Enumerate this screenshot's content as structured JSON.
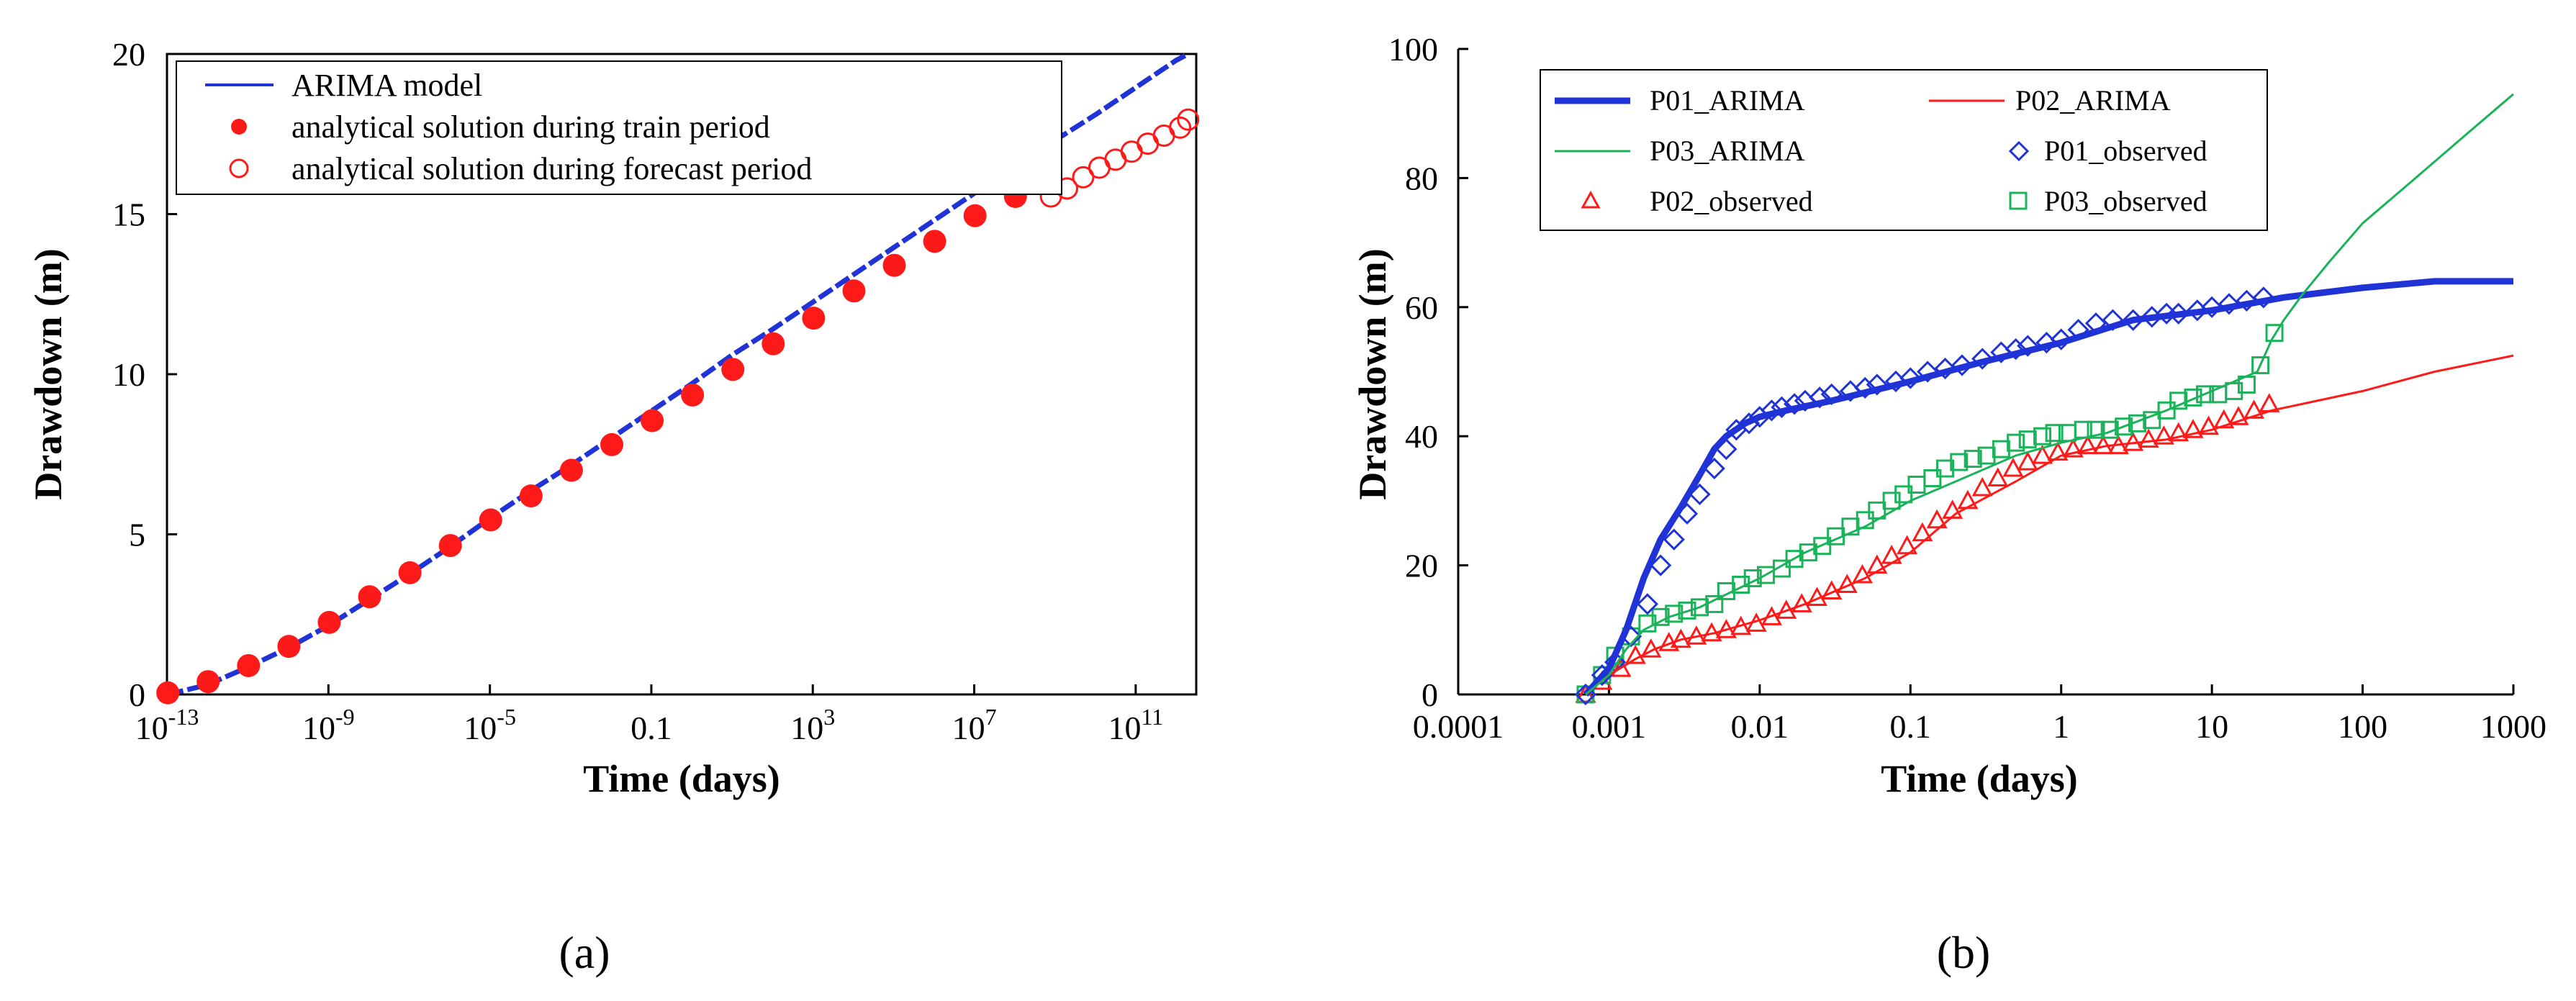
{
  "chart_data": [
    {
      "type": "line",
      "panel_label": "(a)",
      "title": "",
      "xlabel": "Time (days)",
      "ylabel": "Drawdown  (m)",
      "x_scale": "log",
      "xlim_exponent": [
        -13,
        12.5
      ],
      "ylim": [
        0,
        20
      ],
      "y_ticks": [
        "0",
        "5",
        "10",
        "15",
        "20"
      ],
      "x_ticks": [
        {
          "base": "10",
          "exp": "-13",
          "e": -13
        },
        {
          "base": "10",
          "exp": "-9",
          "e": -9
        },
        {
          "base": "10",
          "exp": "-5",
          "e": -5
        },
        {
          "base": "0.1",
          "exp": "",
          "e": -1
        },
        {
          "base": "10",
          "exp": "3",
          "e": 3
        },
        {
          "base": "10",
          "exp": "7",
          "e": 7
        },
        {
          "base": "10",
          "exp": "11",
          "e": 11
        }
      ],
      "legend_position": "top-left",
      "legend": [
        "ARIMA model",
        "analytical solution during train period",
        "analytical solution during forecast period"
      ],
      "colors": {
        "model": "#1f33d6",
        "train": "#ff1a1a",
        "forecast": "#ff1a1a"
      },
      "series": [
        {
          "name": "ARIMA model",
          "style": "line",
          "x_log10": [
            -12.98,
            -12,
            -11,
            -10,
            -9,
            -8,
            -7,
            -6,
            -5,
            -4,
            -3,
            -2,
            -1,
            0,
            1,
            2,
            3,
            4,
            5,
            6,
            7,
            8,
            9,
            10,
            11,
            12,
            12.3
          ],
          "y": [
            0,
            0.3,
            0.85,
            1.45,
            2.15,
            2.95,
            3.75,
            4.6,
            5.5,
            6.35,
            7.15,
            8.0,
            8.85,
            9.7,
            10.6,
            11.4,
            12.25,
            13.1,
            13.95,
            14.8,
            15.65,
            16.45,
            17.3,
            18.1,
            18.95,
            19.8,
            20.0
          ]
        },
        {
          "name": "analytical solution during train period",
          "style": "filled-circle",
          "x_log10": [
            -12.98,
            -11.98,
            -10.98,
            -9.98,
            -8.98,
            -7.98,
            -6.98,
            -5.98,
            -4.98,
            -3.98,
            -2.98,
            -1.98,
            -0.98,
            0.02,
            1.02,
            2.02,
            3.02,
            4.02,
            5.02,
            6.02,
            7.02,
            8.02,
            8.9
          ],
          "y": [
            0.05,
            0.4,
            0.9,
            1.5,
            2.25,
            3.05,
            3.8,
            4.65,
            5.45,
            6.2,
            7.0,
            7.8,
            8.55,
            9.35,
            10.15,
            10.95,
            11.75,
            12.6,
            13.4,
            14.15,
            14.95,
            15.55,
            16.1
          ]
        },
        {
          "name": "analytical solution during forecast period",
          "style": "open-circle",
          "x_log10": [
            8.9,
            9.3,
            9.7,
            10.1,
            10.5,
            10.9,
            11.3,
            11.7,
            12.1,
            12.3
          ],
          "y": [
            15.55,
            15.8,
            16.15,
            16.45,
            16.7,
            16.95,
            17.2,
            17.45,
            17.7,
            17.95
          ]
        }
      ]
    },
    {
      "type": "line",
      "panel_label": "(b)",
      "title": "",
      "xlabel": "Time (days)",
      "ylabel": "Drawdown  (m)",
      "x_scale": "log",
      "xlim": [
        0.0001,
        1000
      ],
      "ylim": [
        0,
        100
      ],
      "y_ticks": [
        "0",
        "20",
        "40",
        "60",
        "80",
        "100"
      ],
      "x_ticks": [
        "0.0001",
        "0.001",
        "0.01",
        "0.1",
        "1",
        "10",
        "100",
        "1000"
      ],
      "legend_position": "top-left",
      "colors": {
        "P01": "#1f33d6",
        "P02": "#ff1a1a",
        "P03": "#1bb35a"
      },
      "series": [
        {
          "name": "P01_ARIMA",
          "style": "thick-line",
          "x": [
            0.0007,
            0.001,
            0.0013,
            0.0017,
            0.0022,
            0.003,
            0.004,
            0.005,
            0.006,
            0.008,
            0.01,
            0.015,
            0.03,
            0.1,
            0.3,
            1,
            3,
            10,
            30,
            100,
            300,
            1000
          ],
          "y": [
            0,
            4,
            10,
            18,
            24,
            29,
            34,
            38,
            40,
            42,
            43,
            44,
            45.5,
            48.5,
            51.5,
            54.5,
            58,
            59.5,
            61.5,
            63,
            64,
            64
          ]
        },
        {
          "name": "P02_ARIMA",
          "style": "line",
          "x": [
            0.0007,
            0.001,
            0.0015,
            0.002,
            0.003,
            0.005,
            0.01,
            0.02,
            0.05,
            0.1,
            0.2,
            0.5,
            1,
            2,
            5,
            10,
            25,
            50,
            100,
            300,
            1000
          ],
          "y": [
            0,
            3,
            5.5,
            7,
            8.5,
            9.5,
            11.5,
            14,
            18,
            22,
            28,
            33,
            37,
            38.5,
            39.5,
            41,
            44,
            45.5,
            47,
            50,
            52.5
          ]
        },
        {
          "name": "P03_ARIMA",
          "style": "line",
          "x": [
            0.0007,
            0.001,
            0.0013,
            0.0017,
            0.0025,
            0.004,
            0.006,
            0.01,
            0.02,
            0.05,
            0.1,
            0.2,
            0.5,
            1,
            2,
            5,
            10,
            20,
            25,
            30,
            40,
            60,
            100,
            200,
            500,
            1000
          ],
          "y": [
            0,
            3,
            7,
            10,
            12,
            13.5,
            15.5,
            18,
            22,
            26,
            30,
            33,
            37,
            39,
            40.5,
            44,
            47,
            50,
            55,
            58,
            62,
            67,
            73,
            79,
            87,
            93
          ]
        },
        {
          "name": "P01_observed",
          "style": "open-diamond",
          "x": [
            0.0007,
            0.0009,
            0.0011,
            0.0014,
            0.0018,
            0.0022,
            0.0027,
            0.0033,
            0.004,
            0.005,
            0.006,
            0.007,
            0.0085,
            0.01,
            0.012,
            0.014,
            0.017,
            0.02,
            0.025,
            0.03,
            0.04,
            0.05,
            0.06,
            0.08,
            0.1,
            0.13,
            0.17,
            0.22,
            0.3,
            0.4,
            0.5,
            0.6,
            0.8,
            1,
            1.3,
            1.7,
            2.2,
            3,
            4,
            5,
            6,
            8,
            10,
            13,
            17,
            22
          ],
          "y": [
            0,
            3,
            5,
            9,
            14,
            20,
            24,
            28,
            31,
            35,
            38,
            41,
            42,
            43,
            44,
            44.5,
            45,
            45.5,
            46,
            46.5,
            47,
            47.5,
            48,
            48.5,
            49,
            50,
            50.5,
            51,
            52,
            53,
            53.5,
            54,
            54.5,
            55,
            56.5,
            57.5,
            58,
            58,
            58.5,
            59,
            59,
            59.5,
            60,
            60.5,
            61,
            61.5
          ]
        },
        {
          "name": "P02_observed",
          "style": "open-triangle",
          "x": [
            0.0007,
            0.0009,
            0.0012,
            0.0015,
            0.0019,
            0.0025,
            0.003,
            0.0038,
            0.0048,
            0.006,
            0.0075,
            0.0095,
            0.012,
            0.015,
            0.019,
            0.024,
            0.03,
            0.038,
            0.048,
            0.06,
            0.075,
            0.095,
            0.12,
            0.15,
            0.19,
            0.24,
            0.3,
            0.38,
            0.48,
            0.6,
            0.75,
            0.95,
            1.2,
            1.5,
            1.9,
            2.4,
            3,
            3.8,
            4.8,
            6,
            7.5,
            9.5,
            12,
            15,
            19,
            24
          ],
          "y": [
            0,
            2,
            4,
            6,
            7,
            8,
            8.5,
            9,
            9.5,
            10,
            10.5,
            11,
            12,
            13,
            14,
            15,
            16,
            17,
            18.5,
            20,
            21.5,
            23,
            25,
            27,
            28.5,
            30,
            32,
            33.5,
            35,
            36,
            37,
            37.5,
            38,
            38.5,
            38.5,
            38.5,
            39,
            39.5,
            40,
            40.5,
            41,
            41.5,
            42.5,
            43,
            44,
            45
          ]
        },
        {
          "name": "P03_observed",
          "style": "open-square",
          "x": [
            0.0007,
            0.0009,
            0.0011,
            0.0014,
            0.0018,
            0.0022,
            0.0027,
            0.0033,
            0.004,
            0.005,
            0.006,
            0.0075,
            0.009,
            0.011,
            0.014,
            0.017,
            0.021,
            0.026,
            0.032,
            0.04,
            0.05,
            0.06,
            0.075,
            0.09,
            0.11,
            0.14,
            0.17,
            0.21,
            0.26,
            0.32,
            0.4,
            0.5,
            0.6,
            0.75,
            0.9,
            1.1,
            1.4,
            1.7,
            2.1,
            2.6,
            3.2,
            4,
            5,
            6,
            7.5,
            9,
            11,
            14,
            17,
            21,
            26
          ],
          "y": [
            0,
            3,
            6,
            9,
            11,
            12,
            12.5,
            13,
            13.5,
            14,
            16,
            17,
            18,
            18.5,
            19.5,
            21,
            22,
            23,
            24.5,
            26,
            27,
            28.5,
            30,
            31,
            32.5,
            33.5,
            35,
            36,
            36.5,
            37,
            38,
            39,
            39.5,
            40,
            40.5,
            40.5,
            41,
            41,
            41,
            41.5,
            42,
            42.5,
            44,
            45.5,
            46,
            46.5,
            46.5,
            47,
            48,
            51,
            56
          ]
        }
      ]
    }
  ]
}
